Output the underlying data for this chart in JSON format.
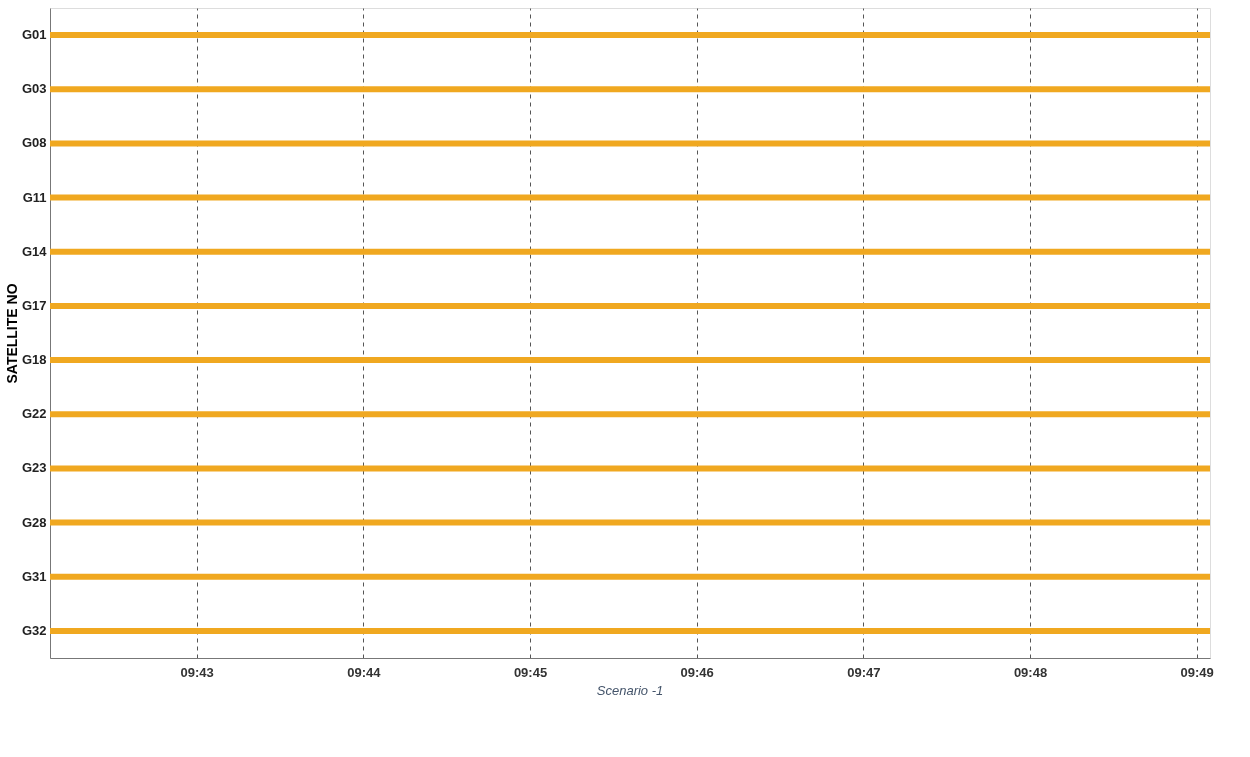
{
  "chart_data": {
    "type": "bar",
    "orientation": "horizontal",
    "ylabel": "SATELLITE NO",
    "categories": [
      "G01",
      "G03",
      "G08",
      "G11",
      "G14",
      "G17",
      "G18",
      "G22",
      "G23",
      "G28",
      "G31",
      "G32"
    ],
    "base": [
      9.702,
      9.702,
      9.702,
      9.702,
      9.702,
      9.702,
      9.702,
      9.702,
      9.702,
      9.702,
      9.702,
      9.702
    ],
    "values": [
      0.116,
      0.116,
      0.116,
      0.116,
      0.116,
      0.116,
      0.116,
      0.116,
      0.116,
      0.116,
      0.116,
      0.116
    ],
    "color": "#f0a820",
    "xlim": [
      9.702,
      9.818
    ],
    "xticks": [
      {
        "value": 9.71667,
        "label": "09:43"
      },
      {
        "value": 9.73333,
        "label": "09:44"
      },
      {
        "value": 9.75,
        "label": "09:45"
      },
      {
        "value": 9.76667,
        "label": "09:46"
      },
      {
        "value": 9.78333,
        "label": "09:47"
      },
      {
        "value": 9.8,
        "label": "09:48"
      },
      {
        "value": 9.81667,
        "label": "09:49"
      }
    ],
    "grid": "x",
    "annotations": [
      "Scenario -1"
    ]
  }
}
